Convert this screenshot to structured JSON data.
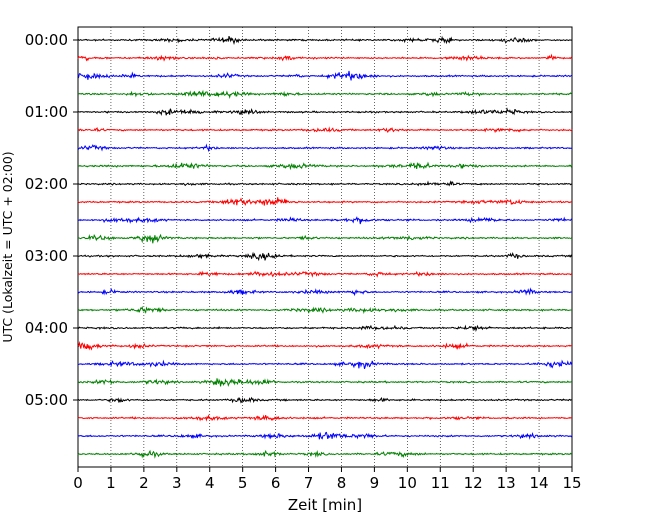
{
  "chart_data": {
    "type": "line",
    "title": "",
    "xlabel": "Zeit  [min]",
    "ylabel": "UTC (Lokalzeit = UTC + 02:00)",
    "xlim": [
      0,
      15
    ],
    "x_ticks": [
      "0",
      "1",
      "2",
      "3",
      "4",
      "5",
      "6",
      "7",
      "8",
      "9",
      "10",
      "11",
      "12",
      "13",
      "14",
      "15"
    ],
    "y_tick_labels": [
      "00:00",
      "01:00",
      "02:00",
      "03:00",
      "04:00",
      "05:00"
    ],
    "grid": "vertical dotted",
    "trace_interval_minutes": 15,
    "trace_starts": [
      "00:00",
      "00:15",
      "00:30",
      "00:45",
      "01:00",
      "01:15",
      "01:30",
      "01:45",
      "02:00",
      "02:15",
      "02:30",
      "02:45",
      "03:00",
      "03:15",
      "03:30",
      "03:45",
      "04:00",
      "04:15",
      "04:30",
      "04:45",
      "05:00",
      "05:15",
      "05:30",
      "05:45"
    ],
    "trace_colors": [
      "#000000",
      "#ff0000",
      "#0000ff",
      "#008000"
    ]
  }
}
